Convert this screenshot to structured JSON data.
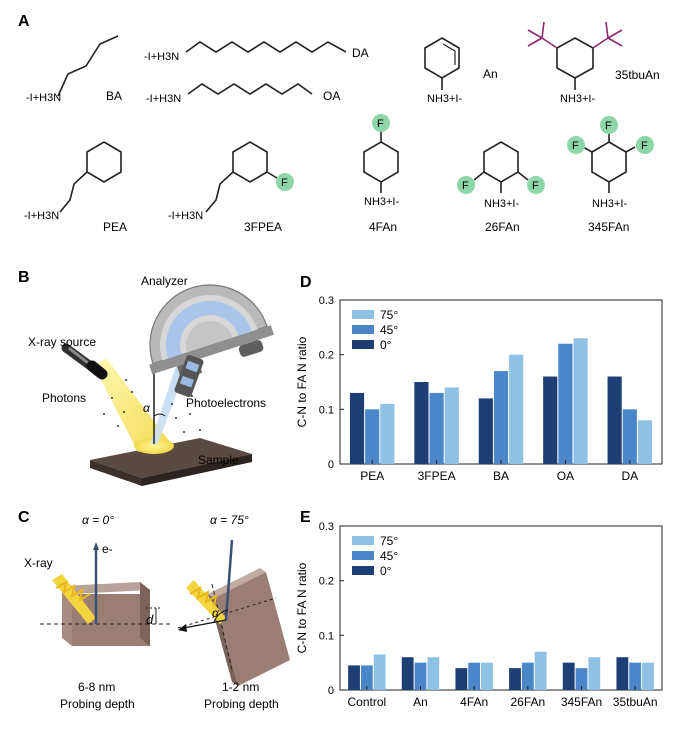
{
  "panels": {
    "a": "A",
    "b": "B",
    "c": "C",
    "d": "D",
    "e": "E"
  },
  "molecules": {
    "ba": {
      "name": "BA",
      "ammonium": "-I+H3N"
    },
    "da": {
      "name": "DA",
      "ammonium": "-I+H3N"
    },
    "oa": {
      "name": "OA",
      "ammonium": "-I+H3N"
    },
    "an": {
      "name": "An",
      "ammonium": "NH3+I-"
    },
    "tbuan": {
      "name": "35tbuAn",
      "ammonium": "NH3+I-"
    },
    "pea": {
      "name": "PEA",
      "ammonium": "-I+H3N"
    },
    "fpea3": {
      "name": "3FPEA",
      "ammonium": "-I+H3N",
      "f": "F"
    },
    "fan4": {
      "name": "4FAn",
      "ammonium": "NH3+I-",
      "f": "F"
    },
    "fan26": {
      "name": "26FAn",
      "ammonium": "NH3+I-",
      "f": "F"
    },
    "fan345": {
      "name": "345FAn",
      "ammonium": "NH3+I-",
      "f": "F"
    }
  },
  "panel_b": {
    "analyzer": "Analyzer",
    "xray_source": "X-ray source",
    "photons": "Photons",
    "photoelectrons": "Photoelectrons",
    "sample": "Sample",
    "alpha": "α"
  },
  "panel_c": {
    "left_title": "α = 0°",
    "right_title": "α = 75°",
    "xray": "X-ray",
    "electron": "e-",
    "depth_symbol": "d",
    "alpha": "α",
    "left_depth": "6-8 nm",
    "right_depth": "1-2 nm",
    "probing": "Probing depth"
  },
  "colors": {
    "angle_75": "#8fc1e5",
    "angle_45": "#4a86c8",
    "angle_0": "#1d3f74",
    "fluorine_highlight": "#8ed6a8",
    "tbu_magenta": "#8b2c6e",
    "sample_brown": "#9a7d73"
  },
  "chart_data": [
    {
      "type": "bar",
      "panel": "D",
      "ylabel": "C-N to FA N ratio",
      "ylim": [
        0,
        0.3
      ],
      "yticks": [
        "0",
        "0.1",
        "0.2",
        "0.3"
      ],
      "categories": [
        "PEA",
        "3FPEA",
        "BA",
        "OA",
        "DA"
      ],
      "series": [
        {
          "name": "0°",
          "values": [
            0.13,
            0.15,
            0.12,
            0.16,
            0.16
          ]
        },
        {
          "name": "45°",
          "values": [
            0.1,
            0.13,
            0.17,
            0.22,
            0.1
          ]
        },
        {
          "name": "75°",
          "values": [
            0.11,
            0.14,
            0.2,
            0.23,
            0.08
          ]
        }
      ],
      "legend_order": [
        "75°",
        "45°",
        "0°"
      ],
      "legend_position": "top-left",
      "grid": false
    },
    {
      "type": "bar",
      "panel": "E",
      "ylabel": "C-N to FA N ratio",
      "ylim": [
        0,
        0.3
      ],
      "yticks": [
        "0",
        "0.1",
        "0.2",
        "0.3"
      ],
      "categories": [
        "Control",
        "An",
        "4FAn",
        "26FAn",
        "345FAn",
        "35tbuAn"
      ],
      "series": [
        {
          "name": "0°",
          "values": [
            0.045,
            0.06,
            0.04,
            0.04,
            0.05,
            0.06
          ]
        },
        {
          "name": "45°",
          "values": [
            0.045,
            0.05,
            0.05,
            0.05,
            0.04,
            0.05
          ]
        },
        {
          "name": "75°",
          "values": [
            0.065,
            0.06,
            0.05,
            0.07,
            0.06,
            0.05
          ]
        }
      ],
      "legend_order": [
        "75°",
        "45°",
        "0°"
      ],
      "legend_position": "top-left",
      "grid": false
    }
  ]
}
